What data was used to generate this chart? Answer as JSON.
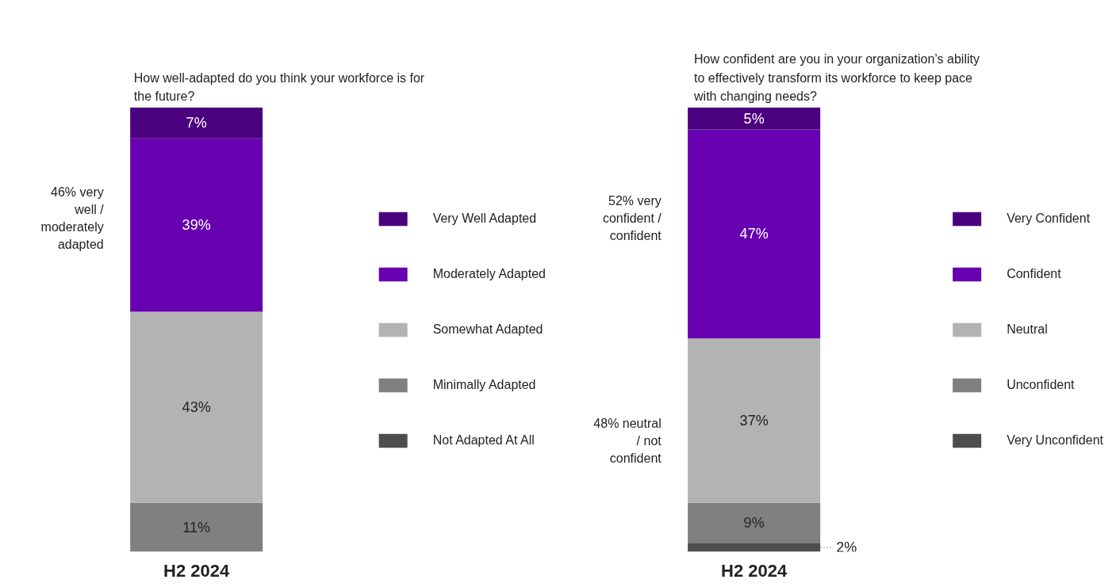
{
  "chart_data": [
    {
      "type": "bar",
      "stacked": true,
      "title": "How well-adapted do you think your workforce is for the future?",
      "categories": [
        "H2 2024"
      ],
      "tick_labels": "x",
      "legend": "right",
      "grid": false,
      "series": [
        {
          "name": "Not Adapted At All",
          "color": "#4d4d4d",
          "values": [
            0
          ],
          "value_labels": [
            null
          ]
        },
        {
          "name": "Minimally Adapted",
          "color": "#808080",
          "values": [
            11
          ],
          "value_labels": [
            "11%"
          ]
        },
        {
          "name": "Somewhat Adapted",
          "color": "#b3b3b3",
          "values": [
            43
          ],
          "value_labels": [
            "43%"
          ]
        },
        {
          "name": "Moderately Adapted",
          "color": "#6600b0",
          "values": [
            39
          ],
          "value_labels": [
            "39%"
          ]
        },
        {
          "name": "Very Well Adapted",
          "color": "#4b007f",
          "values": [
            7
          ],
          "value_labels": [
            "7%"
          ]
        }
      ],
      "annotations": [
        "46% very well / moderately adapted"
      ]
    },
    {
      "type": "bar",
      "stacked": true,
      "title": "How confident are you in your organization’s ability to effectively transform its workforce to keep pace with changing needs?",
      "categories": [
        "H2 2024"
      ],
      "tick_labels": "x",
      "legend": "right",
      "grid": false,
      "series": [
        {
          "name": "Very Unconfident",
          "color": "#4d4d4d",
          "values": [
            2
          ],
          "value_labels": [
            "2%"
          ]
        },
        {
          "name": "Unconfident",
          "color": "#808080",
          "values": [
            9
          ],
          "value_labels": [
            "9%"
          ]
        },
        {
          "name": "Neutral",
          "color": "#b3b3b3",
          "values": [
            37
          ],
          "value_labels": [
            "37%"
          ]
        },
        {
          "name": "Confident",
          "color": "#6600b0",
          "values": [
            47
          ],
          "value_labels": [
            "47%"
          ]
        },
        {
          "name": "Very Confident",
          "color": "#4b007f",
          "values": [
            5
          ],
          "value_labels": [
            "5%"
          ]
        }
      ],
      "annotations": [
        "52% very confident / confident",
        "48% neutral / not confident"
      ]
    }
  ]
}
